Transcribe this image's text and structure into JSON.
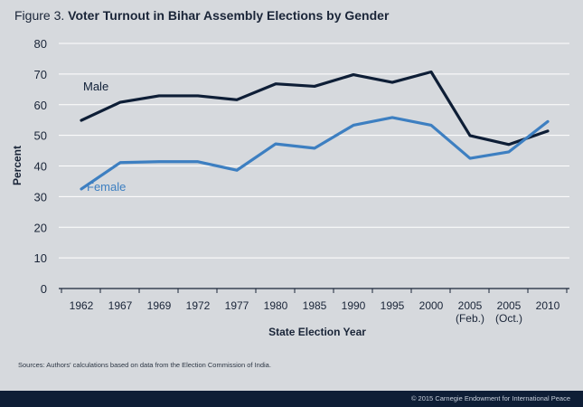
{
  "figure": {
    "prefix": "Figure 3.",
    "title": "Voter Turnout in Bihar Assembly Elections by Gender",
    "sources": "Sources: Authors' calculations based on data from the Election Commission of India.",
    "copyright": "© 2015 Carnegie Endowment for International Peace"
  },
  "colors": {
    "background": "#d6d9dd",
    "male": "#0e1e36",
    "female": "#3d7fc1",
    "grid": "#ffffff",
    "footer": "#0e1e36"
  },
  "chart_data": {
    "type": "line",
    "title": "Voter Turnout in Bihar Assembly Elections by Gender",
    "xlabel": "State Election Year",
    "ylabel": "Percent",
    "ylim": [
      0,
      80
    ],
    "yticks": [
      0,
      10,
      20,
      30,
      40,
      50,
      60,
      70,
      80
    ],
    "grid": true,
    "categories": [
      [
        "1962"
      ],
      [
        "1967"
      ],
      [
        "1969"
      ],
      [
        "1972"
      ],
      [
        "1977"
      ],
      [
        "1980"
      ],
      [
        "1985"
      ],
      [
        "1990"
      ],
      [
        "1995"
      ],
      [
        "2000"
      ],
      [
        "2005",
        "(Feb.)"
      ],
      [
        "2005",
        "(Oct.)"
      ],
      [
        "2010"
      ]
    ],
    "series": [
      {
        "name": "Male",
        "values": [
          54.9,
          60.8,
          62.9,
          62.9,
          61.6,
          66.8,
          66.0,
          69.8,
          67.3,
          70.7,
          49.9,
          47.0,
          51.4
        ]
      },
      {
        "name": "Female",
        "values": [
          32.5,
          41.1,
          41.4,
          41.4,
          38.6,
          47.2,
          45.8,
          53.3,
          55.8,
          53.3,
          42.5,
          44.6,
          54.5
        ]
      }
    ]
  }
}
